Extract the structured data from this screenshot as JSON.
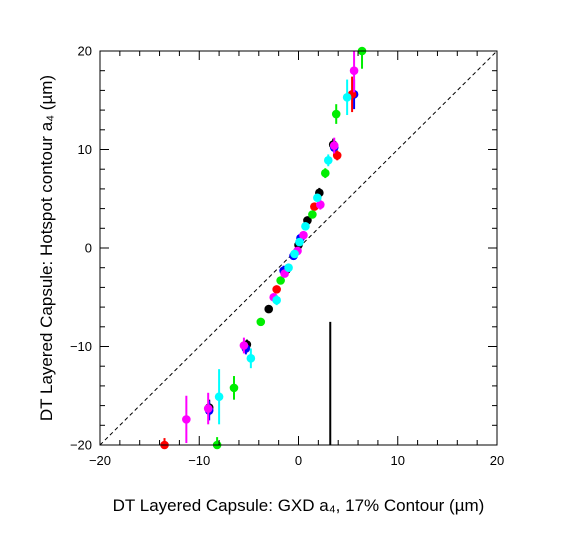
{
  "chart_data": {
    "type": "scatter",
    "title": "",
    "xlabel": "DT Layered Capsule: GXD a₄, 17% Contour (µm)",
    "ylabel": "DT Layered Capsule: Hotspot contour a₄ (µm)",
    "xlim": [
      -20,
      20
    ],
    "ylim": [
      -20,
      20
    ],
    "xticks": [
      -20,
      -10,
      0,
      10,
      20
    ],
    "yticks": [
      -20,
      -10,
      0,
      10,
      20
    ],
    "xtick_labels": [
      "−20",
      "−10",
      "0",
      "10",
      "20"
    ],
    "ytick_labels": [
      "−20",
      "−10",
      "0",
      "10",
      "20"
    ],
    "grid": false,
    "legend": "none",
    "reference_line": {
      "style": "dashed",
      "color": "#000000",
      "x": [
        -20,
        20
      ],
      "y": [
        -20,
        20
      ]
    },
    "vertical_bar": {
      "x": 3.2,
      "y_low": -20,
      "y_high": -7.5,
      "color": "#000000"
    },
    "series": [
      {
        "color": "#000000",
        "points": [
          {
            "x": -9.0,
            "y": -16.2,
            "err": 0.8
          },
          {
            "x": -5.2,
            "y": -9.8,
            "err": 0.5
          },
          {
            "x": -3.0,
            "y": -6.2,
            "err": 0.4
          },
          {
            "x": -1.2,
            "y": -2.2,
            "err": 0.4
          },
          {
            "x": 0.0,
            "y": 0.3,
            "err": 0.3
          },
          {
            "x": 0.9,
            "y": 2.8,
            "err": 0.4
          },
          {
            "x": 2.1,
            "y": 5.6,
            "err": 0.5
          },
          {
            "x": 3.5,
            "y": 10.5,
            "err": 0.6
          }
        ]
      },
      {
        "color": "#0000ff",
        "points": [
          {
            "x": -9.0,
            "y": -16.5,
            "err": 1.0
          },
          {
            "x": -5.3,
            "y": -10.2,
            "err": 0.6
          },
          {
            "x": -1.5,
            "y": -2.3,
            "err": 0.5
          },
          {
            "x": -0.5,
            "y": -0.8,
            "err": 0.4
          },
          {
            "x": 0.2,
            "y": 1.0,
            "err": 0.4
          },
          {
            "x": 3.6,
            "y": 10.2,
            "err": 0.6
          },
          {
            "x": 5.6,
            "y": 15.6,
            "err": 1.5
          }
        ]
      },
      {
        "color": "#ff0000",
        "points": [
          {
            "x": -13.5,
            "y": -20.0,
            "err": 0.7
          },
          {
            "x": -2.2,
            "y": -4.2,
            "err": 0.4
          },
          {
            "x": 1.6,
            "y": 4.2,
            "err": 0.4
          },
          {
            "x": 3.9,
            "y": 9.4,
            "err": 0.5
          },
          {
            "x": 5.4,
            "y": 15.6,
            "err": 1.8
          }
        ]
      },
      {
        "color": "#00ee00",
        "points": [
          {
            "x": -8.2,
            "y": -20.0,
            "err": 0.8
          },
          {
            "x": -6.5,
            "y": -14.2,
            "err": 1.2
          },
          {
            "x": -3.8,
            "y": -7.5,
            "err": 0.4
          },
          {
            "x": -1.8,
            "y": -3.3,
            "err": 0.4
          },
          {
            "x": 1.4,
            "y": 3.4,
            "err": 0.4
          },
          {
            "x": 2.7,
            "y": 7.6,
            "err": 0.5
          },
          {
            "x": 3.8,
            "y": 13.6,
            "err": 1.0
          },
          {
            "x": 6.4,
            "y": 20.0,
            "err": 1.8
          }
        ]
      },
      {
        "color": "#ff00ff",
        "points": [
          {
            "x": -11.3,
            "y": -17.4,
            "err": 2.4
          },
          {
            "x": -9.1,
            "y": -16.3,
            "err": 1.6
          },
          {
            "x": -5.5,
            "y": -9.9,
            "err": 0.8
          },
          {
            "x": -2.5,
            "y": -5.0,
            "err": 0.4
          },
          {
            "x": -1.4,
            "y": -2.6,
            "err": 0.4
          },
          {
            "x": -0.1,
            "y": -0.3,
            "err": 0.4
          },
          {
            "x": 0.5,
            "y": 1.3,
            "err": 0.4
          },
          {
            "x": 2.2,
            "y": 4.4,
            "err": 0.5
          },
          {
            "x": 3.6,
            "y": 10.4,
            "err": 0.8
          },
          {
            "x": 5.6,
            "y": 18.0,
            "err": 2.2
          }
        ]
      },
      {
        "color": "#00ffff",
        "points": [
          {
            "x": -8.0,
            "y": -15.1,
            "err": 2.8
          },
          {
            "x": -4.8,
            "y": -11.2,
            "err": 1.0
          },
          {
            "x": -2.2,
            "y": -5.3,
            "err": 0.5
          },
          {
            "x": -1.0,
            "y": -2.0,
            "err": 0.4
          },
          {
            "x": -0.4,
            "y": -0.6,
            "err": 0.4
          },
          {
            "x": 0.1,
            "y": 0.6,
            "err": 0.4
          },
          {
            "x": 0.7,
            "y": 2.2,
            "err": 0.4
          },
          {
            "x": 1.9,
            "y": 5.1,
            "err": 0.4
          },
          {
            "x": 3.0,
            "y": 8.9,
            "err": 0.6
          },
          {
            "x": 4.9,
            "y": 15.3,
            "err": 1.8
          }
        ]
      }
    ]
  }
}
